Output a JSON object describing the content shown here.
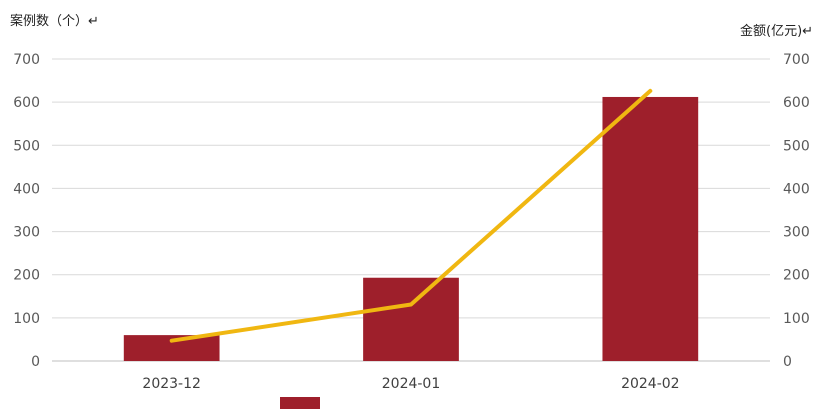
{
  "chart_data": {
    "type": "bar",
    "categories": [
      "2023-12",
      "2024-01",
      "2024-02"
    ],
    "series": [
      {
        "kind": "bar",
        "axis": "left",
        "color": "#9e1f2b",
        "values": [
          60,
          193,
          612
        ]
      },
      {
        "kind": "line",
        "axis": "right",
        "color": "#f0b711",
        "values": [
          47,
          131,
          626
        ]
      }
    ],
    "ylabel_left": "案例数（个）↵",
    "ylabel_right": "金额(亿元)↵",
    "ylim": [
      0,
      700
    ],
    "yticks": [
      0,
      100,
      200,
      300,
      400,
      500,
      600,
      700
    ],
    "ytick_labels": [
      "0",
      "100",
      "200",
      "300",
      "400",
      "500",
      "600",
      "700"
    ],
    "grid": true,
    "legend": "bottom-center"
  }
}
